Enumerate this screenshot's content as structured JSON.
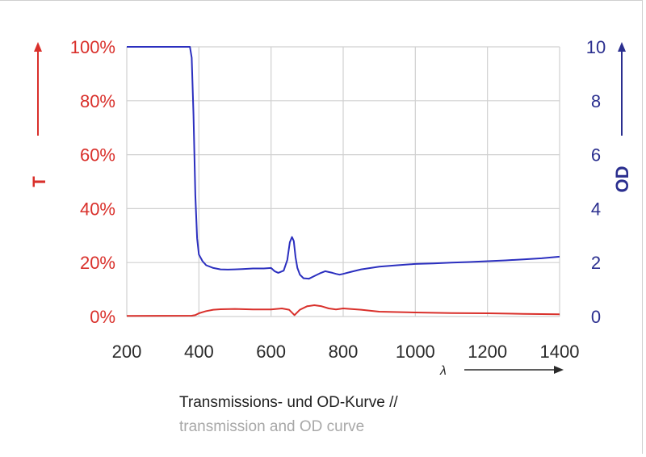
{
  "chart_data": {
    "type": "line",
    "caption_line1": "Transmissions- und OD-Kurve //",
    "caption_line2": "transmission and OD curve",
    "xlabel": "λ",
    "ylabel_left": "T",
    "ylabel_right": "OD",
    "xlim": [
      200,
      1400
    ],
    "ylim_left": [
      0,
      100
    ],
    "ylim_right": [
      0,
      10
    ],
    "x_ticks": [
      "200",
      "400",
      "600",
      "800",
      "1000",
      "1200",
      "1400"
    ],
    "left_ticks": [
      "0%",
      "20%",
      "40%",
      "60%",
      "80%",
      "100%"
    ],
    "right_ticks": [
      "0",
      "2",
      "4",
      "6",
      "8",
      "10"
    ],
    "grid": true,
    "colors": {
      "T": "#d9302b",
      "OD": "#2b2fbf",
      "grid": "#d0d0d0"
    },
    "series": [
      {
        "name": "T",
        "axis": "left",
        "x": [
          200,
          380,
          390,
          400,
          420,
          440,
          460,
          500,
          550,
          600,
          630,
          650,
          665,
          680,
          700,
          720,
          740,
          760,
          780,
          800,
          850,
          900,
          1000,
          1100,
          1200,
          1300,
          1400
        ],
        "y": [
          0.2,
          0.3,
          0.5,
          1.2,
          2.0,
          2.5,
          2.7,
          2.8,
          2.6,
          2.6,
          3.0,
          2.5,
          0.5,
          2.5,
          3.8,
          4.2,
          3.8,
          3.0,
          2.6,
          3.0,
          2.5,
          1.8,
          1.5,
          1.3,
          1.2,
          1.0,
          0.8
        ]
      },
      {
        "name": "OD",
        "axis": "right",
        "x": [
          200,
          375,
          380,
          385,
          390,
          395,
          400,
          410,
          420,
          440,
          460,
          480,
          500,
          520,
          550,
          580,
          600,
          610,
          620,
          635,
          645,
          652,
          658,
          663,
          668,
          673,
          680,
          690,
          705,
          720,
          735,
          750,
          760,
          770,
          780,
          790,
          800,
          820,
          850,
          900,
          950,
          1000,
          1050,
          1100,
          1150,
          1200,
          1250,
          1300,
          1350,
          1400
        ],
        "y": [
          10,
          10,
          9.6,
          7.5,
          4.5,
          2.9,
          2.3,
          2.05,
          1.9,
          1.8,
          1.75,
          1.74,
          1.75,
          1.76,
          1.78,
          1.78,
          1.8,
          1.68,
          1.62,
          1.7,
          2.1,
          2.75,
          2.95,
          2.8,
          2.2,
          1.8,
          1.55,
          1.42,
          1.4,
          1.5,
          1.6,
          1.68,
          1.65,
          1.62,
          1.58,
          1.55,
          1.58,
          1.65,
          1.75,
          1.85,
          1.9,
          1.95,
          1.97,
          2.0,
          2.02,
          2.05,
          2.08,
          2.12,
          2.16,
          2.22
        ]
      }
    ]
  }
}
